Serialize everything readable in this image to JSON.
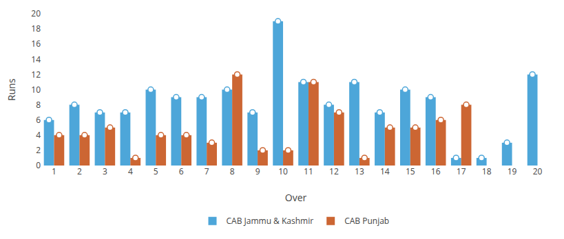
{
  "chart_data": {
    "type": "bar",
    "categories": [
      "1",
      "2",
      "3",
      "4",
      "5",
      "6",
      "7",
      "8",
      "9",
      "10",
      "11",
      "12",
      "13",
      "14",
      "15",
      "16",
      "17",
      "18",
      "19",
      "20"
    ],
    "series": [
      {
        "name": "CAB Jammu & Kashmir",
        "color": "#4da6d9",
        "marker": "circle",
        "values": [
          6,
          8,
          7,
          7,
          10,
          9,
          9,
          10,
          7,
          19,
          11,
          8,
          11,
          7,
          10,
          9,
          1,
          1,
          3,
          12
        ]
      },
      {
        "name": "CAB Punjab",
        "color": "#cc6633",
        "marker": "circle",
        "values": [
          4,
          4,
          5,
          1,
          4,
          4,
          3,
          12,
          2,
          2,
          11,
          7,
          1,
          5,
          5,
          6,
          8,
          0,
          0,
          0
        ]
      }
    ],
    "xlabel": "Over",
    "ylabel": "Runs",
    "ylim": [
      0,
      20
    ],
    "yticks": [
      0,
      2,
      4,
      6,
      8,
      10,
      12,
      14,
      16,
      18,
      20
    ],
    "grid": false,
    "legend": "bottom"
  }
}
